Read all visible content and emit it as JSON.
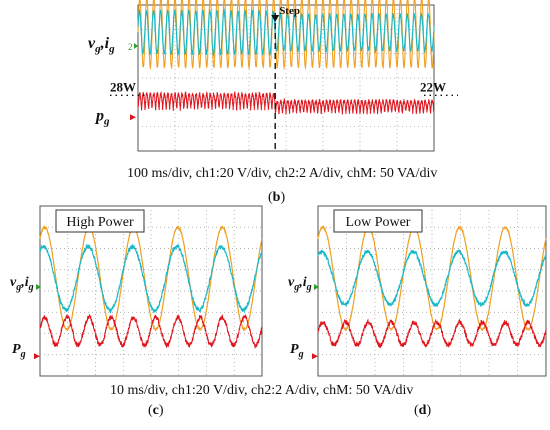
{
  "colors": {
    "vg": "#f0a020",
    "ig": "#19b8c8",
    "pg": "#e0141c",
    "grid": "#9a9a9a",
    "frame": "#555555",
    "marker": "#2ea02e",
    "background": "#ffffff"
  },
  "chart_data": [
    {
      "id": "b",
      "type": "line",
      "sublabel": "b",
      "caption": "100 ms/div, ch1:20 V/div, ch2:2 A/div, chM: 50 VA/div",
      "annotations": {
        "step": "Step",
        "before": "28W",
        "after": "22W"
      },
      "channel_labels": {
        "vi": "v_g, i_g",
        "p": "p_g"
      },
      "series": [
        {
          "name": "v_g",
          "channel": "ch1",
          "amplitude_div": 2.6,
          "offset_div": 2.2,
          "cycles_before_step": 21,
          "cycles_after_step": 21
        },
        {
          "name": "i_g",
          "channel": "ch2",
          "amplitude_before_div": 1.6,
          "amplitude_after_div": 1.35,
          "offset_div": 2.2
        },
        {
          "name": "p_g",
          "channel": "chM",
          "level_before_div": -1.45,
          "level_after_div": -1.6,
          "ripple_before_div": 0.45,
          "ripple_after_div": 0.35
        }
      ],
      "step_at_div": 3.6,
      "divisions": {
        "x": 8,
        "y": 6
      }
    },
    {
      "id": "c",
      "type": "line",
      "sublabel": "c",
      "title": "High Power",
      "channel_labels": {
        "vi": "v_g, i_g",
        "p": "P_g"
      },
      "series": [
        {
          "name": "v_g",
          "channel": "ch1",
          "amplitude_div": 2.4,
          "offset_div": 1.2,
          "cycles": 5
        },
        {
          "name": "i_g",
          "channel": "ch2",
          "amplitude_div": 1.5,
          "offset_div": 1.2,
          "cycles": 5
        },
        {
          "name": "P_g",
          "channel": "chM",
          "level_div": -2.55,
          "ripple_div": 0.55,
          "cycles": 10
        }
      ],
      "divisions": {
        "x": 8,
        "y": 8
      }
    },
    {
      "id": "d",
      "type": "line",
      "sublabel": "d",
      "title": "Low Power",
      "channel_labels": {
        "vi": "v_g, i_g",
        "p": "P_g"
      },
      "series": [
        {
          "name": "v_g",
          "channel": "ch1",
          "amplitude_div": 2.4,
          "offset_div": 1.2,
          "cycles": 5
        },
        {
          "name": "i_g",
          "channel": "ch2",
          "amplitude_div": 1.25,
          "offset_div": 1.2,
          "cycles": 5
        },
        {
          "name": "P_g",
          "channel": "chM",
          "level_div": -2.55,
          "ripple_div": 0.45,
          "cycles": 10
        }
      ],
      "divisions": {
        "x": 8,
        "y": 8
      }
    }
  ],
  "captions": {
    "bottom": "10 ms/div, ch1:20 V/div, ch2:2 A/div, chM: 50 VA/div"
  }
}
